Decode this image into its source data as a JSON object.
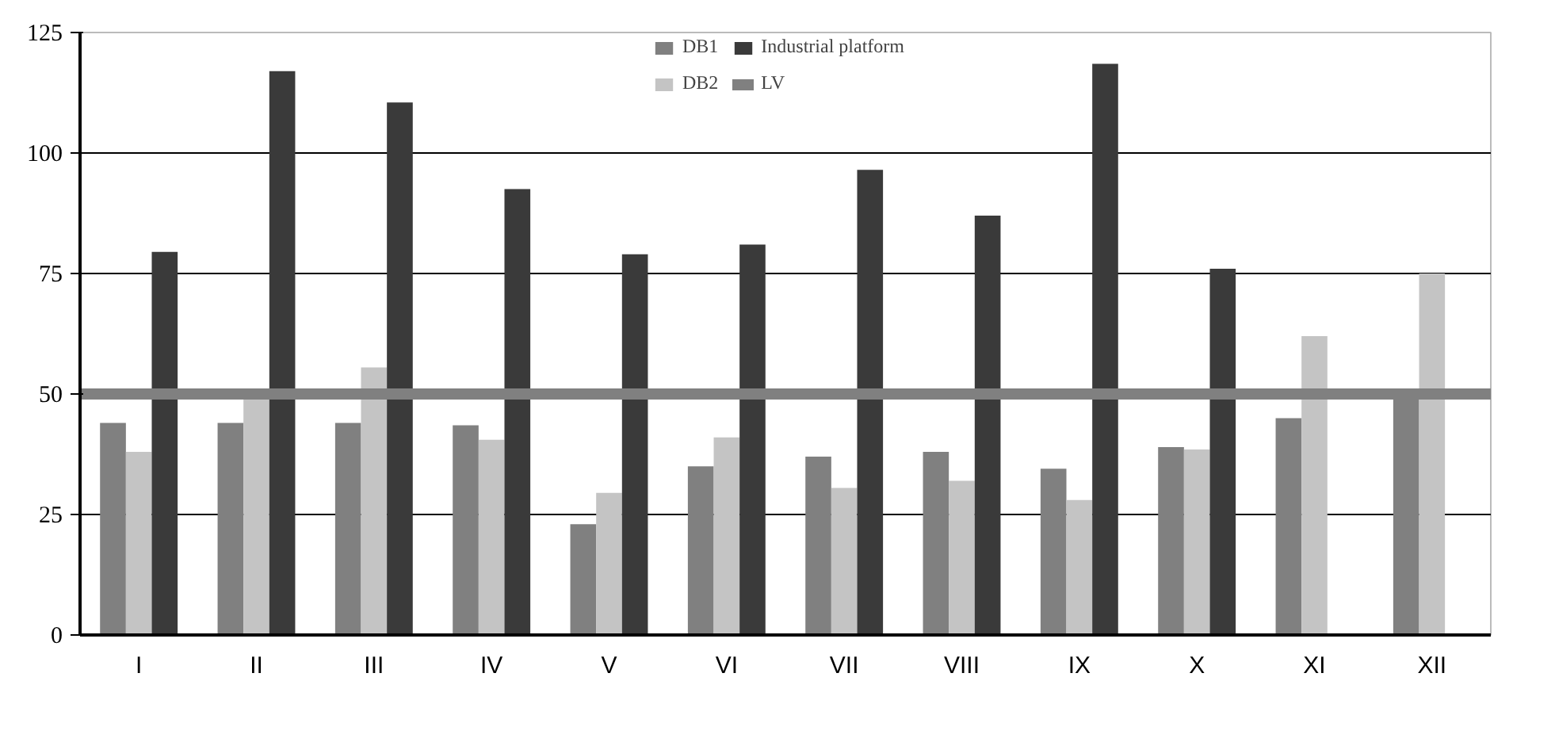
{
  "chart_data": {
    "type": "bar",
    "categories": [
      "I",
      "II",
      "III",
      "IV",
      "V",
      "VI",
      "VII",
      "VIII",
      "IX",
      "X",
      "XI",
      "XII"
    ],
    "series": [
      {
        "name": "DB1",
        "color": "#808080",
        "values": [
          44,
          44,
          44,
          43.5,
          23,
          35,
          37,
          38,
          34.5,
          39,
          45,
          50
        ]
      },
      {
        "name": "DB2",
        "color": "#c4c4c4",
        "values": [
          38,
          49,
          55.5,
          40.5,
          29.5,
          41,
          30.5,
          32,
          28,
          38.5,
          62,
          75
        ]
      },
      {
        "name": "Industrial platform",
        "color": "#3a3a3a",
        "values": [
          79.5,
          117,
          110.5,
          92.5,
          79,
          81,
          96.5,
          87,
          118.5,
          76,
          null,
          null
        ]
      }
    ],
    "ylim": [
      0,
      125
    ],
    "yticks": [
      0,
      25,
      50,
      75,
      100,
      125
    ],
    "grid": "y",
    "legend": "top",
    "ref_lines": [
      {
        "axis": "y",
        "value": 50,
        "label": "LV",
        "color": "#808080"
      }
    ]
  }
}
